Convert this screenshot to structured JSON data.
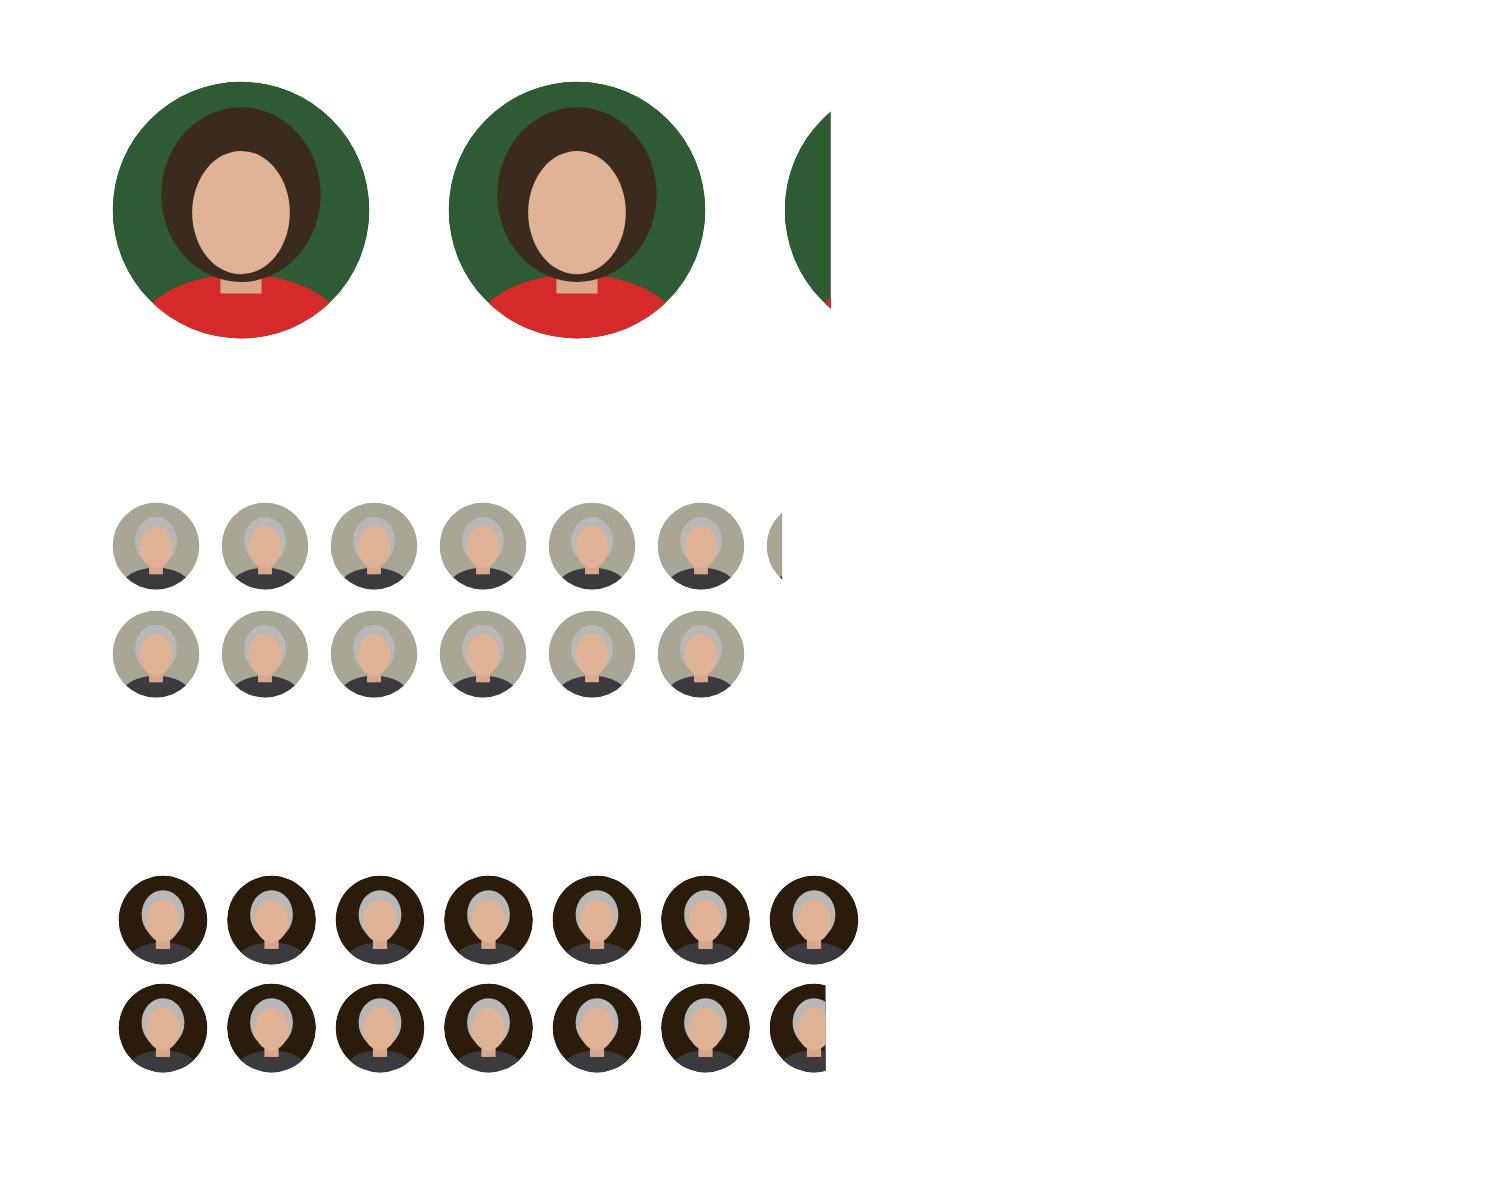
{
  "chart_data": {
    "type": "pictogram",
    "tick_labels": false,
    "values": [
      2.18,
      12.18,
      13.63
    ],
    "colors": [
      "#2e5b34",
      "#a9a696",
      "#2a1b0b"
    ]
  }
}
